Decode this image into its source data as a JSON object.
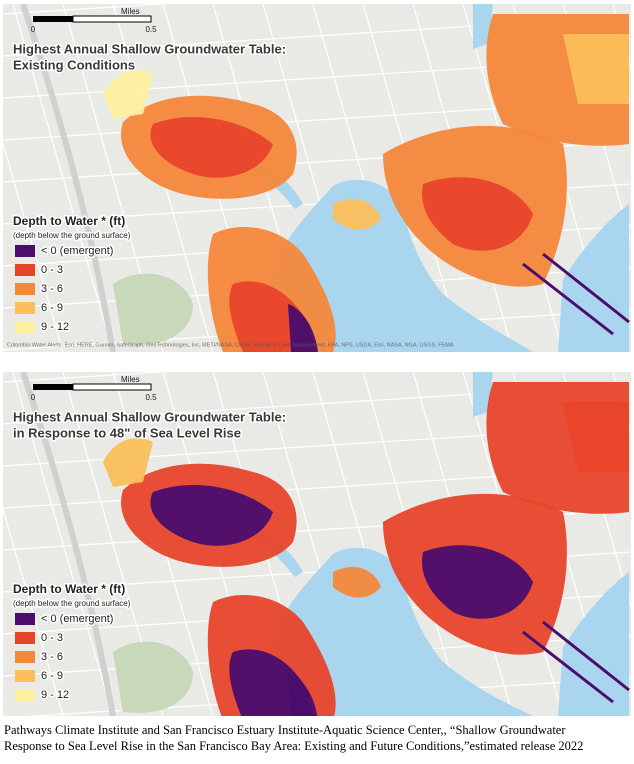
{
  "panels": [
    {
      "scale": {
        "unit": "Miles",
        "ticks": [
          "0",
          "0.5"
        ]
      },
      "title": [
        "Highest Annual Shallow Groundwater Table:",
        "Existing Conditions"
      ],
      "legend": {
        "title": "Depth to Water * (ft)",
        "subtitle": "(depth below the ground surface)",
        "items": [
          {
            "label": "< 0 (emergent)",
            "color": "#4a0d6e"
          },
          {
            "label": "0 - 3",
            "color": "#e8442b"
          },
          {
            "label": "3 - 6",
            "color": "#f4883a"
          },
          {
            "label": "6 - 9",
            "color": "#fbbf5a"
          },
          {
            "label": "9 - 12",
            "color": "#fdf0a0"
          }
        ]
      },
      "attribution": "Colombia Water Alerts, Esri, HERE, Garmin, SafeGraph, GeoTechnologies, Inc, METI/NASA, USGS, Bureau of Land Management, EPA, NPS, USDA, Esri, NASA, NGA, USGS, FEMA"
    },
    {
      "scale": {
        "unit": "Miles",
        "ticks": [
          "0",
          "0.5"
        ]
      },
      "title": [
        "Highest Annual Shallow Groundwater Table:",
        "in Response to 48\" of Sea Level Rise"
      ],
      "legend": {
        "title": "Depth to Water * (ft)",
        "subtitle": "(depth below the ground surface)",
        "items": [
          {
            "label": "< 0 (emergent)",
            "color": "#4a0d6e"
          },
          {
            "label": "0 - 3",
            "color": "#e8442b"
          },
          {
            "label": "3 - 6",
            "color": "#f4883a"
          },
          {
            "label": "6 - 9",
            "color": "#fbbf5a"
          },
          {
            "label": "9 - 12",
            "color": "#fdf0a0"
          }
        ]
      }
    }
  ],
  "caption": [
    "Pathways Climate Institute and San Francisco Estuary Institute-Aquatic Science Center,, “Shallow Groundwater",
    "Response to Sea Level Rise in the San Francisco Bay Area: Existing and Future Conditions,”estimated release 2022"
  ]
}
